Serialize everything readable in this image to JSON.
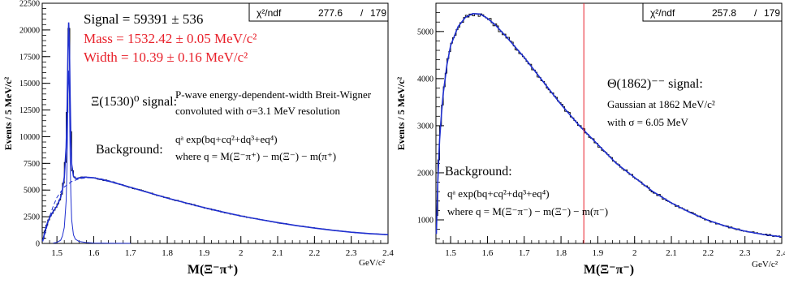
{
  "chart_data": [
    {
      "type": "line",
      "panel": "left",
      "xlabel": "M(Ξ⁻π⁺)",
      "xunit": "GeV/c²",
      "ylabel": "Events / 5 MeV/c²",
      "xlim": [
        1.46,
        2.4
      ],
      "ylim": [
        0,
        22500
      ],
      "grid": false,
      "x_ticks": [
        "1.5",
        "1.6",
        "1.7",
        "1.8",
        "1.9",
        "2",
        "2.1",
        "2.2",
        "2.3",
        "2.4"
      ],
      "y_ticks": [
        "0",
        "2500",
        "5000",
        "7500",
        "10000",
        "12500",
        "15000",
        "17500",
        "20000",
        "22500"
      ],
      "stats_box": {
        "label": "χ²/ndf",
        "chi2": "277.6",
        "sep": "/",
        "ndf": "179"
      },
      "annotations": {
        "signal": "Signal = 59391 ± 536",
        "mass": "Mass = 1532.42 ± 0.05 MeV/c²",
        "width": "Width = 10.39 ± 0.16 MeV/c²",
        "xi_label": "Ξ(1530)⁰ signal:",
        "desc1": "P-wave energy-dependent-width Breit-Wigner",
        "desc2": "convoluted with σ=3.1 MeV resolution",
        "bg_label": "Background:",
        "bg_formula": "qᵃ exp(bq+cq²+dq³+eq⁴)",
        "bg_where": "where q = M(Ξ⁻π⁺) − m(Ξ⁻) − m(π⁺)"
      },
      "colors": {
        "data": "#000000",
        "fit": "#1f2fd0",
        "mass_text": "#e8202a"
      },
      "series": [
        {
          "name": "fit",
          "x": [
            1.461,
            1.465,
            1.47,
            1.475,
            1.48,
            1.49,
            1.5,
            1.51,
            1.515,
            1.52,
            1.525,
            1.528,
            1.53,
            1.532,
            1.534,
            1.536,
            1.538,
            1.54,
            1.545,
            1.55,
            1.555,
            1.56,
            1.57,
            1.58,
            1.6,
            1.62,
            1.65,
            1.7,
            1.75,
            1.8,
            1.85,
            1.9,
            1.95,
            2.0,
            2.05,
            2.1,
            2.15,
            2.2,
            2.25,
            2.3,
            2.35,
            2.4
          ],
          "y": [
            200,
            800,
            1500,
            2000,
            2400,
            3000,
            3500,
            4300,
            5000,
            6200,
            9000,
            13000,
            18000,
            20700,
            18500,
            13500,
            9500,
            7400,
            6300,
            6100,
            6100,
            6150,
            6200,
            6200,
            6150,
            6000,
            5750,
            5250,
            4750,
            4250,
            3800,
            3350,
            2950,
            2580,
            2250,
            1950,
            1680,
            1440,
            1230,
            1050,
            920,
            820
          ]
        },
        {
          "name": "background",
          "x": [
            1.461,
            1.47,
            1.48,
            1.49,
            1.5,
            1.52,
            1.54,
            1.56,
            1.58,
            1.6,
            1.62,
            1.65,
            1.7,
            1.75,
            1.8
          ],
          "y": [
            200,
            1200,
            2500,
            3500,
            4300,
            5300,
            5800,
            6050,
            6150,
            6150,
            6050,
            5800,
            5250,
            4750,
            4250
          ]
        },
        {
          "name": "signal",
          "x": [
            1.49,
            1.5,
            1.51,
            1.515,
            1.52,
            1.525,
            1.528,
            1.53,
            1.532,
            1.534,
            1.536,
            1.538,
            1.54,
            1.545,
            1.55,
            1.56,
            1.58,
            1.6,
            1.65,
            1.7
          ],
          "y": [
            40,
            100,
            300,
            700,
            1500,
            4000,
            8000,
            14000,
            16200,
            14000,
            8000,
            4500,
            2200,
            800,
            400,
            180,
            80,
            40,
            20,
            10
          ]
        }
      ]
    },
    {
      "type": "line",
      "panel": "right",
      "xlabel": "M(Ξ⁻π⁻)",
      "xunit": "GeV/c²",
      "ylabel": "Events / 5 MeV/c²",
      "xlim": [
        1.46,
        2.4
      ],
      "ylim": [
        500,
        5600
      ],
      "grid": false,
      "x_ticks": [
        "1.5",
        "1.6",
        "1.7",
        "1.8",
        "1.9",
        "2",
        "2.1",
        "2.2",
        "2.3",
        "2.4"
      ],
      "y_ticks": [
        "1000",
        "2000",
        "3000",
        "4000",
        "5000"
      ],
      "stats_box": {
        "label": "χ²/ndf",
        "chi2": "257.8",
        "sep": "/",
        "ndf": "179"
      },
      "annotations": {
        "theta_label": "Θ(1862)⁻⁻ signal:",
        "gauss1": "Gaussian at 1862 MeV/c²",
        "gauss2": "with σ = 6.05 MeV",
        "bg_label": "Background:",
        "bg_formula": "qᵃ exp(bq+cq²+dq³+eq⁴)",
        "bg_where": "where q = M(Ξ⁻π⁻) − m(Ξ⁻) − m(π⁻)"
      },
      "marker_x": 1.862,
      "colors": {
        "data": "#000000",
        "fit": "#1f2fd0",
        "marker": "#e8202a"
      },
      "series": [
        {
          "name": "fit",
          "x": [
            1.461,
            1.465,
            1.47,
            1.475,
            1.48,
            1.49,
            1.5,
            1.52,
            1.54,
            1.56,
            1.58,
            1.6,
            1.62,
            1.65,
            1.7,
            1.75,
            1.8,
            1.85,
            1.9,
            1.95,
            2.0,
            2.05,
            2.1,
            2.15,
            2.2,
            2.25,
            2.3,
            2.35,
            2.4
          ],
          "y": [
            700,
            1800,
            2700,
            3250,
            3700,
            4300,
            4700,
            5100,
            5300,
            5380,
            5370,
            5280,
            5150,
            4900,
            4450,
            3950,
            3450,
            3000,
            2600,
            2200,
            1900,
            1600,
            1360,
            1160,
            990,
            860,
            760,
            690,
            640
          ]
        }
      ]
    }
  ]
}
